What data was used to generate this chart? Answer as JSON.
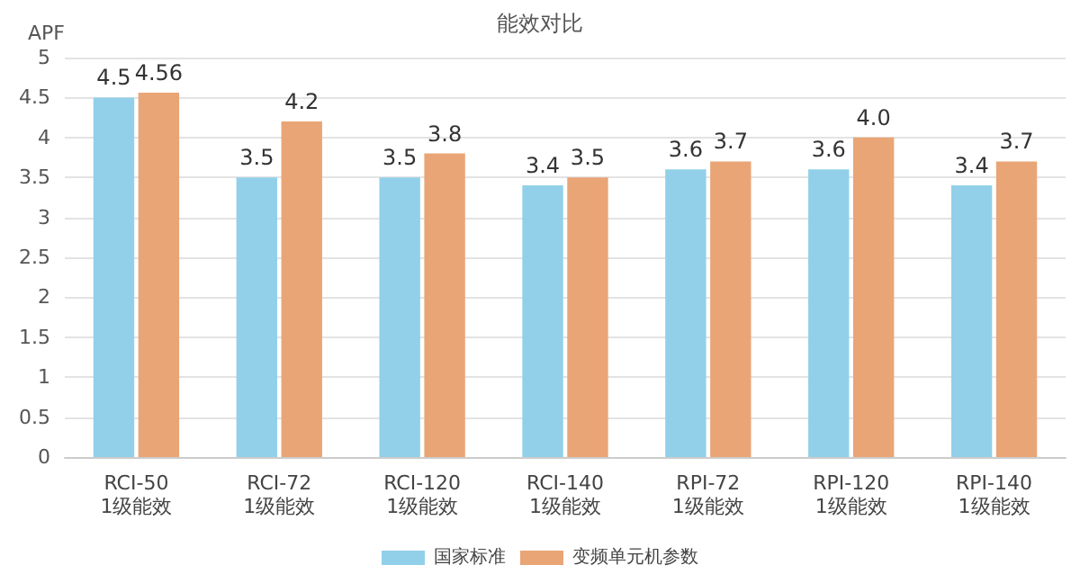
{
  "chart_data": {
    "type": "bar",
    "title": "能效对比",
    "ylabel": "APF",
    "categories": [
      "RCI-50\n1级能效",
      "RCI-72\n1级能效",
      "RCI-120\n1级能效",
      "RCI-140\n1级能效",
      "RPI-72\n1级能效",
      "RPI-120\n1级能效",
      "RPI-140\n1级能效"
    ],
    "series": [
      {
        "name": "国家标准",
        "color": "#92d0ea",
        "values": [
          4.5,
          3.5,
          3.5,
          3.4,
          3.6,
          3.6,
          3.4
        ],
        "value_labels": [
          "4.5",
          "3.5",
          "3.5",
          "3.4",
          "3.6",
          "3.6",
          "3.4"
        ]
      },
      {
        "name": "变频单元机参数",
        "color": "#e9a576",
        "values": [
          4.56,
          4.2,
          3.8,
          3.5,
          3.7,
          4.0,
          3.7
        ],
        "value_labels": [
          "4.56",
          "4.2",
          "3.8",
          "3.5",
          "3.7",
          "4.0",
          "3.7"
        ]
      }
    ],
    "ylim": [
      0,
      5
    ],
    "yticks": [
      0,
      0.5,
      1,
      1.5,
      2,
      2.5,
      3,
      3.5,
      4,
      4.5,
      5
    ],
    "grid": "y",
    "legend": "bottom"
  }
}
